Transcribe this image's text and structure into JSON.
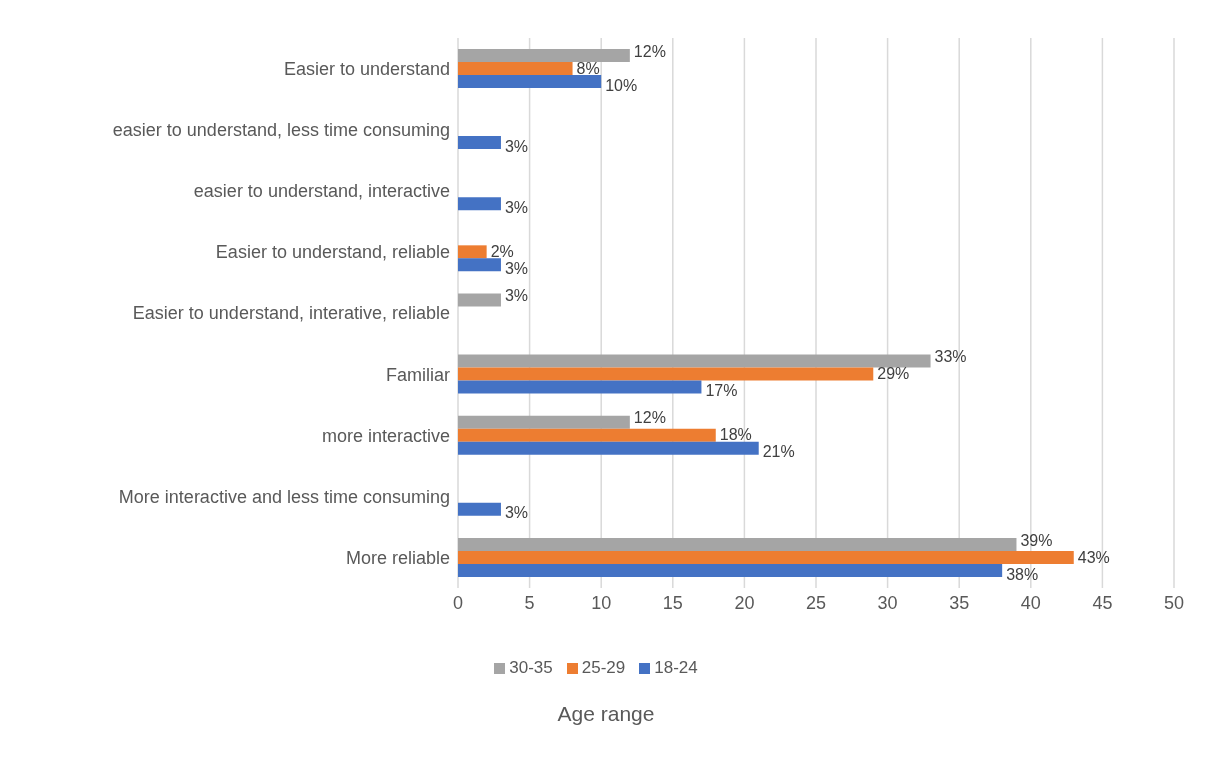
{
  "chart_data": {
    "type": "bar",
    "orientation": "horizontal",
    "xlabel": "Age range",
    "categories": [
      "Easier to understand",
      "easier to understand, less time consuming",
      "easier to understand, interactive",
      "Easier to understand, reliable",
      "Easier to understand, interative, reliable",
      "Familiar",
      "more interactive",
      "More interactive and less time consuming",
      "More reliable"
    ],
    "series": [
      {
        "name": "30-35",
        "color": "#a5a5a5",
        "values": [
          12,
          null,
          null,
          null,
          3,
          33,
          12,
          null,
          39
        ],
        "value_labels": [
          "12%",
          null,
          null,
          null,
          "3%",
          "33%",
          "12%",
          null,
          "39%"
        ]
      },
      {
        "name": "25-29",
        "color": "#ed7d31",
        "values": [
          8,
          null,
          null,
          2,
          null,
          29,
          18,
          null,
          43
        ],
        "value_labels": [
          "8%",
          null,
          null,
          "2%",
          null,
          "29%",
          "18%",
          null,
          "43%"
        ]
      },
      {
        "name": "18-24",
        "color": "#4472c4",
        "values": [
          10,
          3,
          3,
          3,
          null,
          17,
          21,
          3,
          38
        ],
        "value_labels": [
          "10%",
          "3%",
          "3%",
          "3%",
          null,
          "17%",
          "21%",
          "3%",
          "38%"
        ]
      }
    ],
    "xlim": [
      0,
      50
    ],
    "xticks": [
      0,
      5,
      10,
      15,
      20,
      25,
      30,
      35,
      40,
      45,
      50
    ],
    "grid": "x",
    "legend": "bottom"
  }
}
